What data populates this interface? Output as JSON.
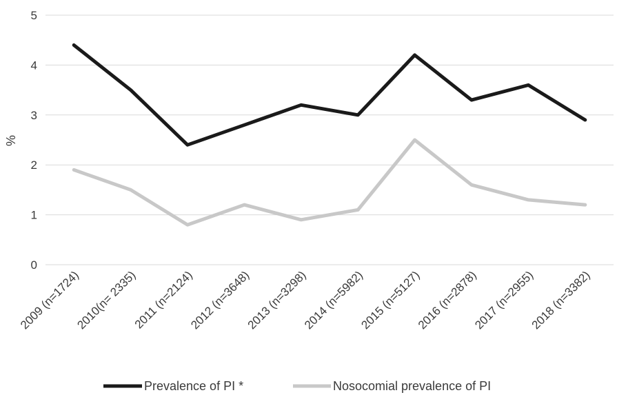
{
  "chart_data": {
    "type": "line",
    "categories": [
      "2009 (n=1724)",
      "2010(n= 2335)",
      "2011 (n=2124)",
      "2012 (n=3648)",
      "2013 (n=3298)",
      "2014 (n=5982)",
      "2015 (n=5127)",
      "2016 (n=2878)",
      "2017 (n=2955)",
      "2018 (n=3382)"
    ],
    "series": [
      {
        "name": "Prevalence of PI *",
        "color": "#1a1a1a",
        "values": [
          4.4,
          3.5,
          2.4,
          2.8,
          3.2,
          3.0,
          4.2,
          3.3,
          3.6,
          2.9
        ]
      },
      {
        "name": "Nosocomial prevalence of PI",
        "color": "#c8c8c8",
        "values": [
          1.9,
          1.5,
          0.8,
          1.2,
          0.9,
          1.1,
          2.5,
          1.6,
          1.3,
          1.2
        ]
      }
    ],
    "ylabel": "%",
    "ylim": [
      0,
      5
    ],
    "yticks": [
      "0",
      "1",
      "2",
      "3",
      "4",
      "5"
    ],
    "grid": true,
    "legend_position": "bottom"
  }
}
